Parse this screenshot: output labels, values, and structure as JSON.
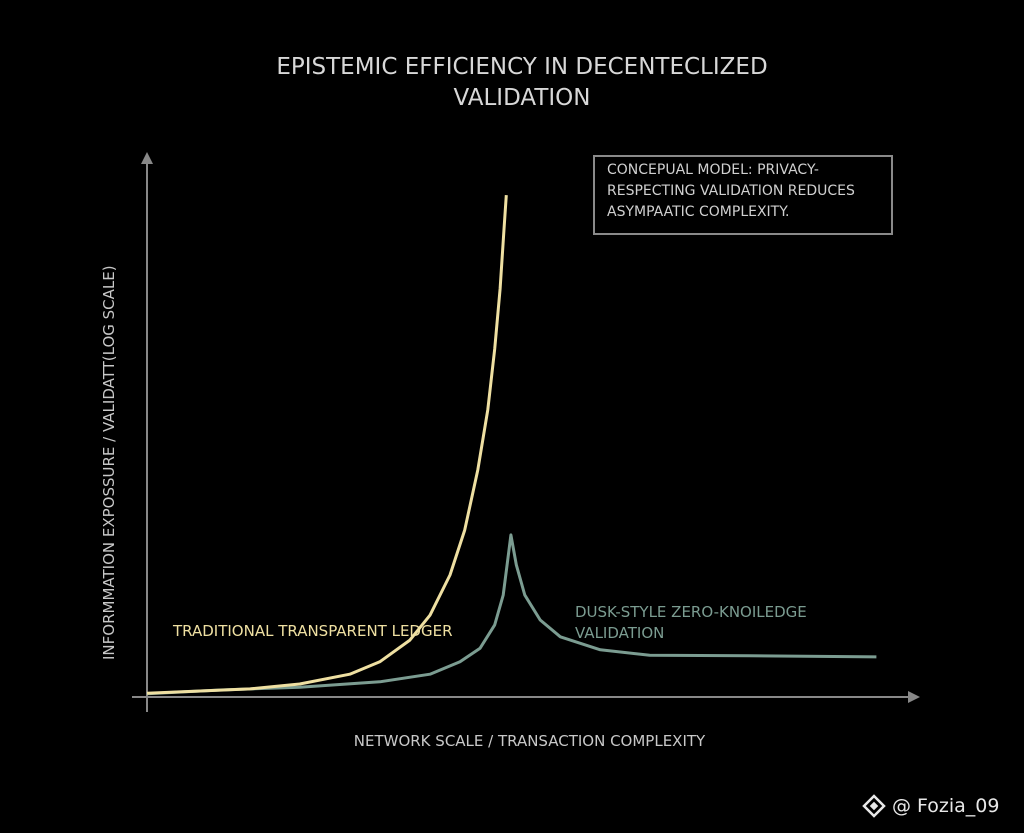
{
  "chart_data": {
    "type": "line",
    "title": "EPISTEMIC EFFICIENCY IN DECENTECLIZED VALIDATION",
    "x_label": "NETWORK SCALE / TRANSACTION COMPLEXITY",
    "y_label": "INFORMMATION EXPOSSURE / VALIDATT(LOG SCALE)",
    "annotation": "CONCEPUAL MODEL: PRIVACY-RESPECTING VALIDATION REDUCES ASYMPAATIC COMPLEXITY.",
    "watermark": "@ Fozia_09",
    "xlim": [
      0,
      100
    ],
    "ylim": [
      0,
      100
    ],
    "series": [
      {
        "name": "TRADITIONAL TRANSPARENT LEDGER",
        "color": "#efe0a2",
        "x": [
          0,
          13.4,
          19.8,
          26.3,
          30.2,
          34.1,
          36.7,
          39.3,
          41.2,
          42.9,
          44.2,
          45.1,
          45.8,
          46.3,
          46.6
        ],
        "values": [
          0.7,
          1.5,
          2.4,
          4.2,
          6.5,
          10.5,
          15.1,
          22.5,
          30.8,
          41.9,
          53.0,
          64.2,
          75.3,
          86.3,
          92.6
        ]
      },
      {
        "name": "DUSK-STYLE ZERO-KNOILEDGE VALIDATION",
        "color": "#7b9c91",
        "x": [
          0,
          9.5,
          19.8,
          30.2,
          36.7,
          40.6,
          43.2,
          45.1,
          46.2,
          46.7,
          47.2,
          47.9,
          49.0,
          51.0,
          53.6,
          58.8,
          65.2,
          78.2,
          94.6
        ],
        "values": [
          0.6,
          1.3,
          1.8,
          2.8,
          4.2,
          6.5,
          9.0,
          13.3,
          18.8,
          24.4,
          29.9,
          24.4,
          18.8,
          14.2,
          11.1,
          8.7,
          7.7,
          7.6,
          7.4
        ]
      }
    ]
  }
}
